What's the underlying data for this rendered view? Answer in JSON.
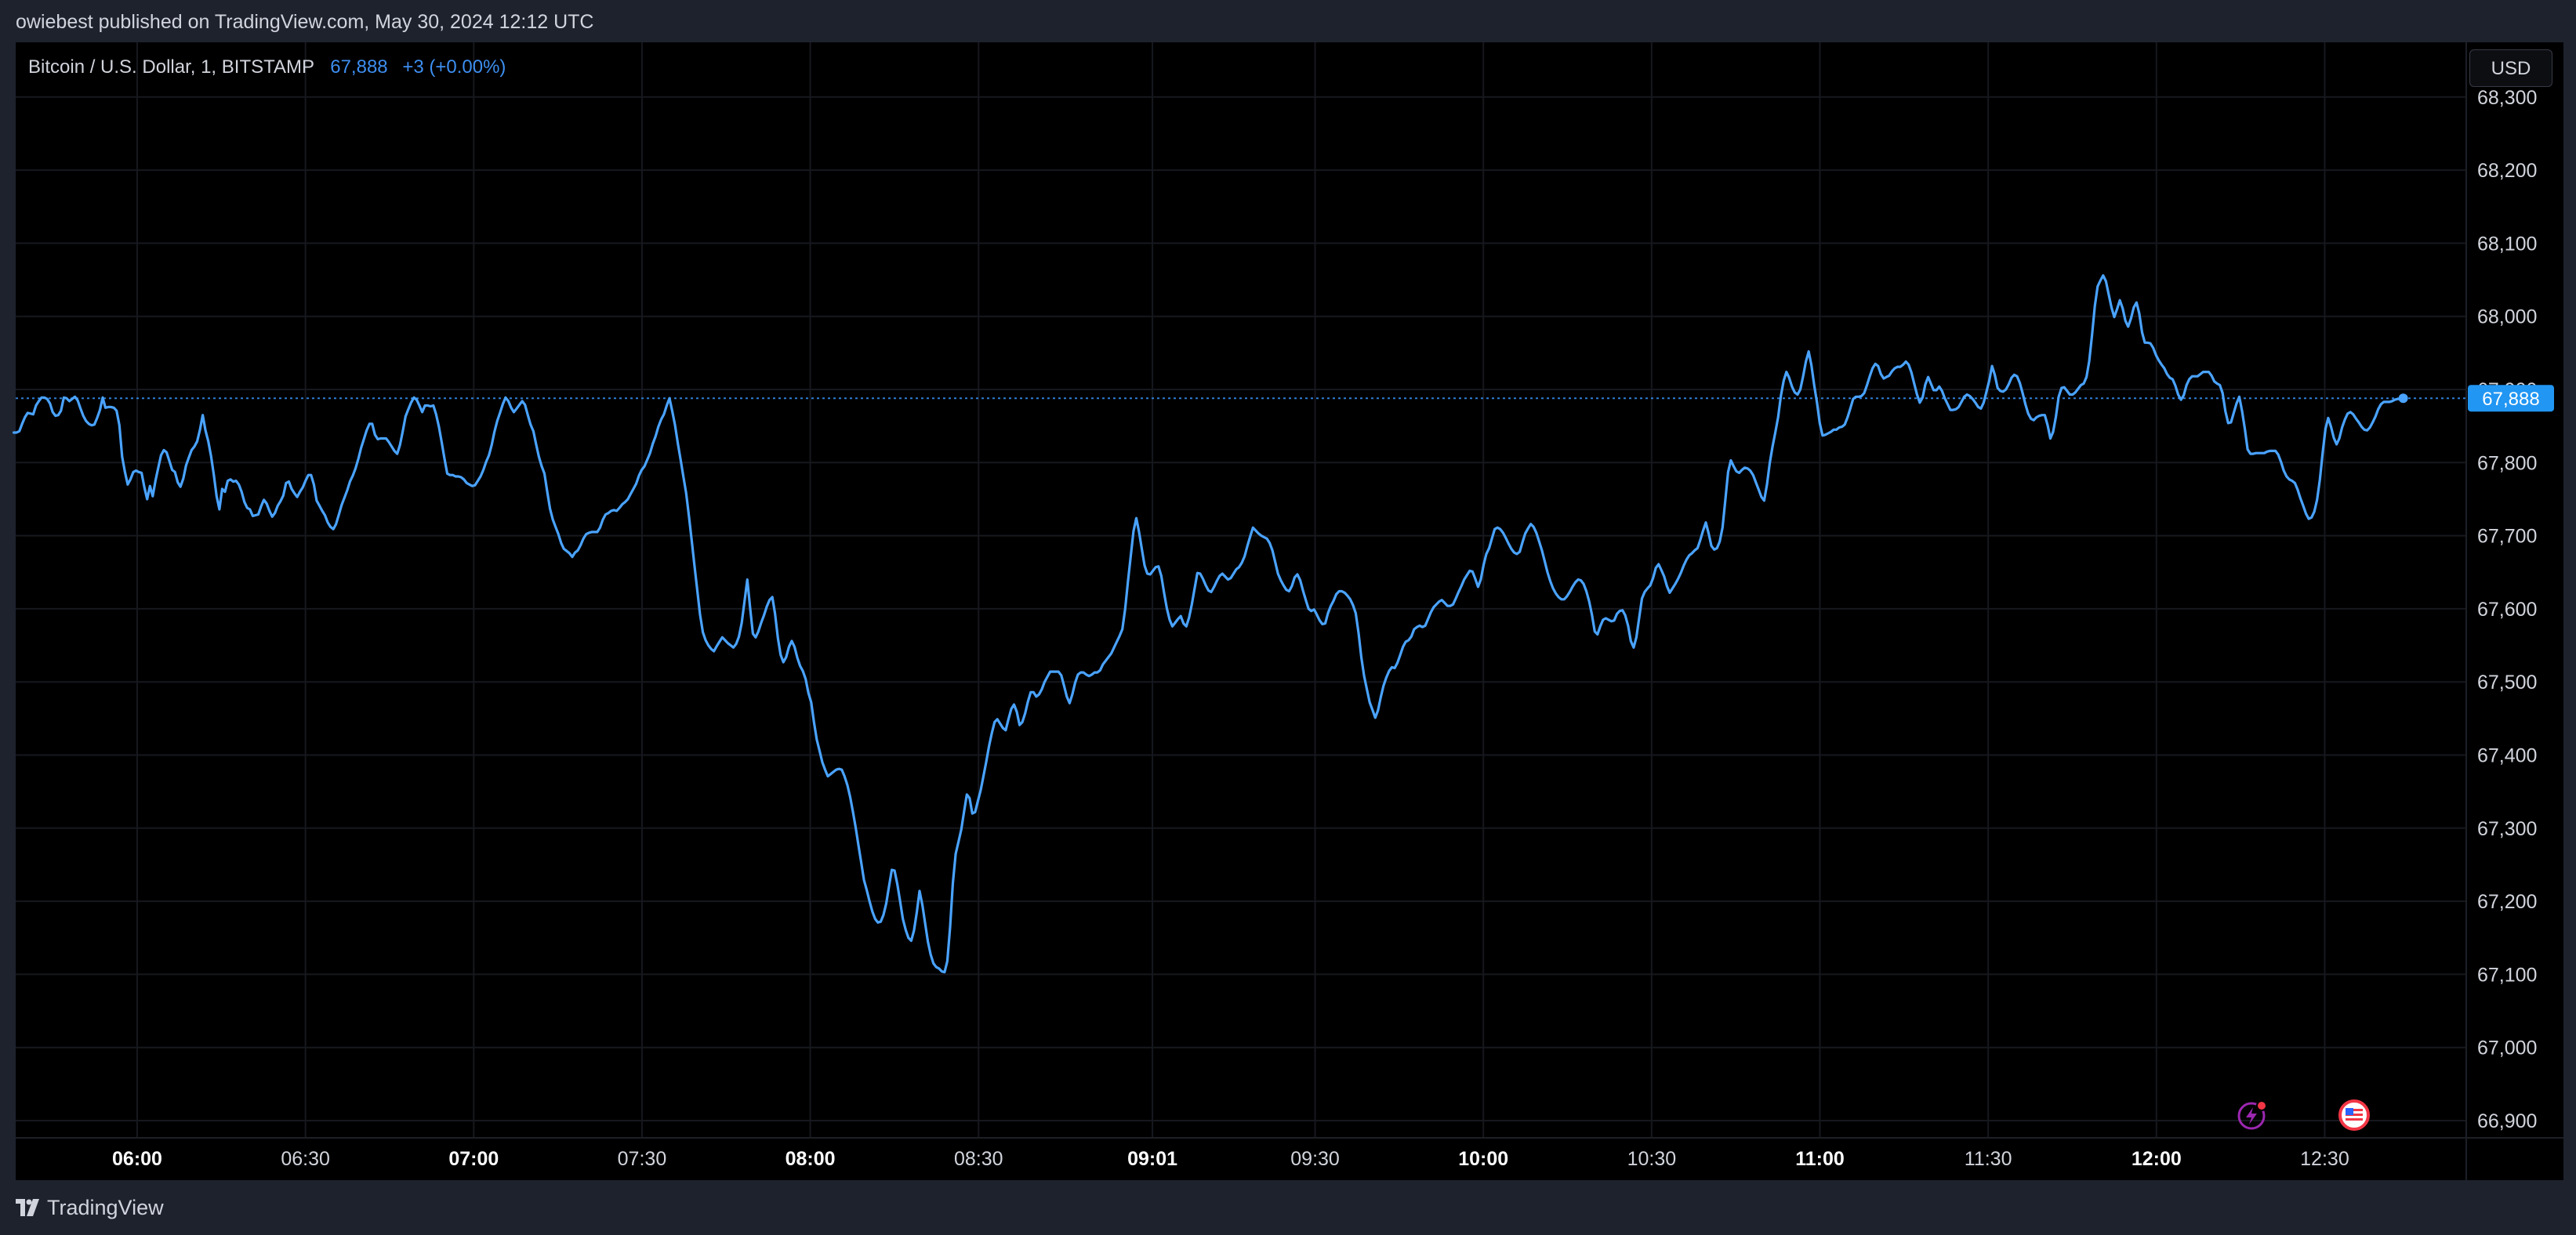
{
  "header": {
    "published_text": "owiebest published on TradingView.com, May 30, 2024 12:12 UTC"
  },
  "symbol": {
    "name": "Bitcoin / U.S. Dollar, 1, BITSTAMP",
    "last": "67,888",
    "change": "+3 (+0.00%)"
  },
  "currency_button": "USD",
  "price_tag": "67,888",
  "footer": {
    "brand": "TradingView"
  },
  "icons": {
    "logo": "tradingview-logo-icon",
    "lightning": "lightning-icon",
    "flag": "us-flag-icon"
  },
  "colors": {
    "background": "#000000",
    "frame": "#1e222d",
    "line": "#4aa3ff",
    "price_tag": "#2196f3",
    "text": "#d1d4dc",
    "grid": "#16181e"
  },
  "chart_data": {
    "type": "line",
    "title": "",
    "xlabel": "",
    "ylabel": "",
    "ylim": [
      66875,
      68310
    ],
    "y_ticks": [
      "68,300",
      "68,200",
      "68,100",
      "68,000",
      "67,900",
      "67,800",
      "67,700",
      "67,600",
      "67,500",
      "67,400",
      "67,300",
      "67,200",
      "67,100",
      "67,000",
      "66,900"
    ],
    "x_ticks": [
      {
        "label": "06:00",
        "bold": true
      },
      {
        "label": "06:30",
        "bold": false
      },
      {
        "label": "07:00",
        "bold": true
      },
      {
        "label": "07:30",
        "bold": false
      },
      {
        "label": "08:00",
        "bold": true
      },
      {
        "label": "08:30",
        "bold": false
      },
      {
        "label": "09:01",
        "bold": true
      },
      {
        "label": "09:30",
        "bold": false
      },
      {
        "label": "10:00",
        "bold": true
      },
      {
        "label": "10:30",
        "bold": false
      },
      {
        "label": "11:00",
        "bold": true
      },
      {
        "label": "11:30",
        "bold": false
      },
      {
        "label": "12:00",
        "bold": true
      },
      {
        "label": "12:30",
        "bold": false
      }
    ],
    "time_range": [
      "05:38",
      "12:44"
    ],
    "last_price": 67888,
    "series": [
      {
        "values": [
          67841,
          67841,
          67843,
          67853,
          67862,
          67868,
          67867,
          67866,
          67878,
          67884,
          67889,
          67889,
          67887,
          67881,
          67869,
          67864,
          67865,
          67871,
          67889,
          67888,
          67884,
          67887,
          67890,
          67885,
          67874,
          67864,
          67857,
          67853,
          67851,
          67852,
          67861,
          67872,
          67889,
          67875,
          67876,
          67876,
          67875,
          67871,
          67851,
          67808,
          67787,
          67770,
          67777,
          67787,
          67789,
          67787,
          67786,
          67766,
          67750,
          67768,
          67754,
          67775,
          67793,
          67810,
          67817,
          67814,
          67802,
          67790,
          67787,
          67773,
          67767,
          67778,
          67796,
          67807,
          67817,
          67822,
          67829,
          67845,
          67865,
          67844,
          67829,
          67809,
          67783,
          67754,
          67736,
          67764,
          67760,
          67775,
          67777,
          67774,
          67775,
          67770,
          67760,
          67746,
          67738,
          67736,
          67727,
          67728,
          67729,
          67740,
          67749,
          67744,
          67734,
          67726,
          67731,
          67741,
          67747,
          67755,
          67772,
          67774,
          67764,
          67758,
          67753,
          67760,
          67766,
          67775,
          67783,
          67783,
          67770,
          67748,
          67741,
          67734,
          67728,
          67718,
          67712,
          67709,
          67716,
          67729,
          67742,
          67752,
          67762,
          67774,
          67782,
          67792,
          67805,
          67820,
          67832,
          67844,
          67853,
          67853,
          67838,
          67832,
          67833,
          67833,
          67833,
          67828,
          67822,
          67816,
          67812,
          67824,
          67843,
          67863,
          67873,
          67882,
          67889,
          67886,
          67878,
          67869,
          67878,
          67878,
          67877,
          67878,
          67866,
          67849,
          67828,
          67806,
          67785,
          67783,
          67783,
          67781,
          67781,
          67780,
          67777,
          67772,
          67770,
          67768,
          67769,
          67775,
          67781,
          67790,
          67801,
          67810,
          67824,
          67842,
          67857,
          67868,
          67880,
          67889,
          67884,
          67875,
          67869,
          67874,
          67879,
          67884,
          67879,
          67865,
          67852,
          67843,
          67825,
          67808,
          67795,
          67785,
          67760,
          67737,
          67722,
          67712,
          67702,
          67690,
          67682,
          67679,
          67676,
          67671,
          67677,
          67680,
          67687,
          67696,
          67702,
          67704,
          67705,
          67705,
          67705,
          67711,
          67722,
          67729,
          67731,
          67734,
          67735,
          67734,
          67738,
          67743,
          67746,
          67750,
          67757,
          67764,
          67771,
          67782,
          67790,
          67795,
          67804,
          67813,
          67826,
          67836,
          67849,
          67859,
          67866,
          67878,
          67888,
          67870,
          67851,
          67826,
          67804,
          67781,
          67758,
          67727,
          67693,
          67659,
          67625,
          67592,
          67568,
          67557,
          67550,
          67545,
          67542,
          67549,
          67555,
          67561,
          67557,
          67553,
          67550,
          67547,
          67552,
          67562,
          67581,
          67610,
          67640,
          67602,
          67566,
          67561,
          67569,
          67581,
          67591,
          67603,
          67612,
          67616,
          67593,
          67560,
          67537,
          67527,
          67534,
          67548,
          67556,
          67548,
          67533,
          67522,
          67515,
          67504,
          67485,
          67472,
          67445,
          67421,
          67406,
          67390,
          67380,
          67371,
          67374,
          67377,
          67380,
          67381,
          67380,
          67371,
          67359,
          67343,
          67323,
          67301,
          67277,
          67253,
          67229,
          67215,
          67200,
          67186,
          67176,
          67171,
          67172,
          67181,
          67197,
          67220,
          67243,
          67242,
          67223,
          67200,
          67176,
          67161,
          67150,
          67146,
          67160,
          67185,
          67214,
          67195,
          67170,
          67145,
          67127,
          67115,
          67110,
          67108,
          67104,
          67103,
          67118,
          67165,
          67225,
          67265,
          67281,
          67298,
          67322,
          67346,
          67341,
          67320,
          67322,
          67337,
          67352,
          67371,
          67391,
          67412,
          67430,
          67445,
          67449,
          67443,
          67437,
          67434,
          67449,
          67463,
          67469,
          67459,
          67441,
          67445,
          67457,
          67473,
          67486,
          67486,
          67480,
          67483,
          67490,
          67500,
          67507,
          67514,
          67514,
          67514,
          67514,
          67509,
          67495,
          67480,
          67471,
          67483,
          67499,
          67510,
          67513,
          67513,
          67510,
          67508,
          67510,
          67513,
          67513,
          67516,
          67524,
          67529,
          67534,
          67539,
          67547,
          67555,
          67563,
          67572,
          67600,
          67637,
          67672,
          67706,
          67724,
          67705,
          67682,
          67659,
          67648,
          67647,
          67652,
          67657,
          67658,
          67645,
          67622,
          67601,
          67585,
          67576,
          67581,
          67586,
          67590,
          67580,
          67576,
          67588,
          67606,
          67628,
          67649,
          67648,
          67641,
          67632,
          67625,
          67623,
          67630,
          67638,
          67645,
          67648,
          67644,
          67640,
          67642,
          67648,
          67654,
          67657,
          67663,
          67672,
          67686,
          67699,
          67711,
          67707,
          67703,
          67700,
          67698,
          67696,
          67690,
          67680,
          67664,
          67648,
          67639,
          67632,
          67626,
          67624,
          67631,
          67643,
          67647,
          67639,
          67625,
          67612,
          67600,
          67597,
          67599,
          67592,
          67584,
          67579,
          67580,
          67594,
          67604,
          67611,
          67620,
          67624,
          67624,
          67622,
          67618,
          67613,
          67605,
          67594,
          67567,
          67534,
          67508,
          67490,
          67472,
          67462,
          67451,
          67461,
          67479,
          67495,
          67506,
          67515,
          67520,
          67519,
          67526,
          67537,
          67548,
          67555,
          67557,
          67562,
          67572,
          67575,
          67577,
          67575,
          67577,
          67586,
          67595,
          67602,
          67606,
          67610,
          67612,
          67608,
          67604,
          67604,
          67606,
          67614,
          67623,
          67631,
          67640,
          67646,
          67652,
          67651,
          67641,
          67630,
          67640,
          67660,
          67675,
          67683,
          67696,
          67709,
          67711,
          67709,
          67704,
          67697,
          67689,
          67682,
          67677,
          67675,
          67678,
          67691,
          67703,
          67710,
          67716,
          67712,
          67704,
          67692,
          67680,
          67665,
          67650,
          67638,
          67628,
          67621,
          67616,
          67613,
          67613,
          67617,
          67623,
          67630,
          67636,
          67640,
          67639,
          67634,
          67624,
          67610,
          67592,
          67569,
          67565,
          67576,
          67585,
          67587,
          67585,
          67583,
          67584,
          67593,
          67597,
          67598,
          67591,
          67577,
          67556,
          67547,
          67561,
          67588,
          67614,
          67623,
          67628,
          67632,
          67642,
          67656,
          67661,
          67653,
          67644,
          67631,
          67622,
          67628,
          67634,
          67641,
          67649,
          67659,
          67667,
          67673,
          67676,
          67680,
          67683,
          67694,
          67707,
          67718,
          67703,
          67686,
          67681,
          67683,
          67692,
          67711,
          67748,
          67787,
          67803,
          67795,
          67788,
          67786,
          67790,
          67793,
          67792,
          67789,
          67783,
          67773,
          67763,
          67753,
          67748,
          67770,
          67799,
          67822,
          67841,
          67862,
          67891,
          67912,
          67924,
          67916,
          67904,
          67896,
          67893,
          67900,
          67918,
          67938,
          67952,
          67933,
          67906,
          67882,
          67854,
          67837,
          67838,
          67840,
          67842,
          67845,
          67845,
          67848,
          67849,
          67852,
          67862,
          67874,
          67887,
          67890,
          67890,
          67891,
          67895,
          67906,
          67918,
          67929,
          67935,
          67932,
          67921,
          67915,
          67917,
          67919,
          67925,
          67929,
          67931,
          67931,
          67934,
          67938,
          67934,
          67923,
          67908,
          67893,
          67882,
          67889,
          67907,
          67917,
          67908,
          67899,
          67899,
          67904,
          67898,
          67888,
          67880,
          67872,
          67872,
          67873,
          67876,
          67883,
          67890,
          67893,
          67891,
          67887,
          67882,
          67876,
          67874,
          67882,
          67897,
          67912,
          67932,
          67920,
          67902,
          67898,
          67897,
          67900,
          67907,
          67916,
          67920,
          67918,
          67909,
          67895,
          67880,
          67867,
          67860,
          67858,
          67862,
          67864,
          67865,
          67865,
          67851,
          67833,
          67842,
          67863,
          67890,
          67902,
          67903,
          67898,
          67893,
          67893,
          67896,
          67901,
          67906,
          67908,
          67917,
          67939,
          67975,
          68014,
          68041,
          68049,
          68056,
          68048,
          68030,
          68012,
          67999,
          68010,
          68022,
          68011,
          67994,
          67986,
          67997,
          68012,
          68019,
          68004,
          67978,
          67964,
          67964,
          67963,
          67957,
          67947,
          67940,
          67934,
          67929,
          67921,
          67916,
          67914,
          67905,
          67893,
          67886,
          67892,
          67906,
          67914,
          67918,
          67918,
          67918,
          67921,
          67924,
          67924,
          67924,
          67919,
          67911,
          67908,
          67906,
          67895,
          67870,
          67854,
          67855,
          67868,
          67881,
          67890,
          67870,
          67846,
          67818,
          67812,
          67812,
          67813,
          67813,
          67813,
          67813,
          67815,
          67816,
          67816,
          67816,
          67811,
          67801,
          67789,
          67781,
          67777,
          67775,
          67772,
          67763,
          67751,
          67741,
          67730,
          67723,
          67725,
          67733,
          67749,
          67777,
          67813,
          67846,
          67861,
          67849,
          67834,
          67825,
          67833,
          67848,
          67859,
          67867,
          67869,
          67866,
          67860,
          67855,
          67849,
          67845,
          67844,
          67848,
          67855,
          67863,
          67873,
          67880,
          67883,
          67883,
          67883,
          67884,
          67886,
          67887,
          67887,
          67888
        ]
      }
    ]
  }
}
